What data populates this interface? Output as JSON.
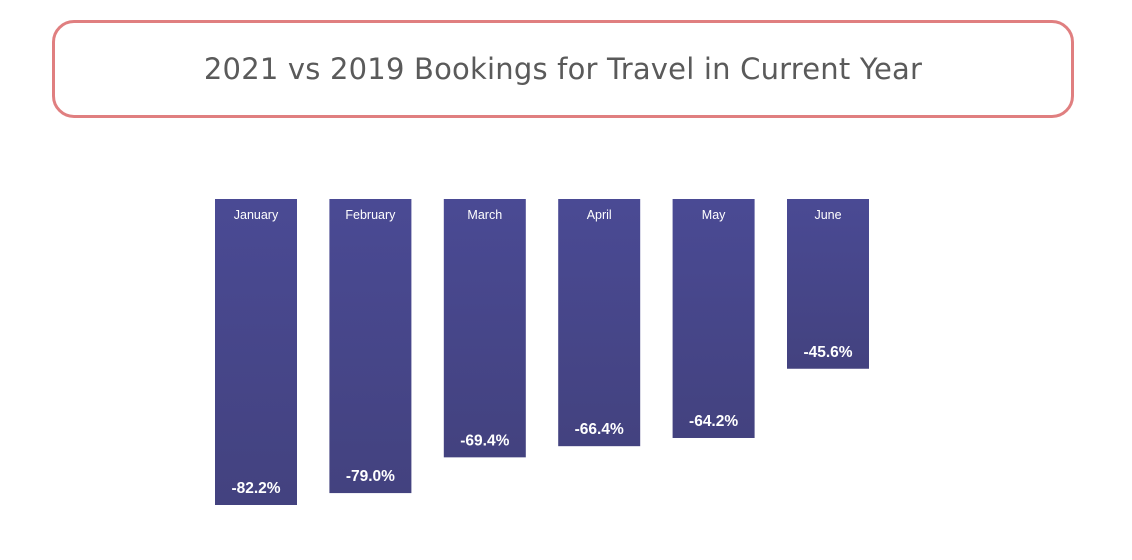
{
  "chart_data": {
    "type": "bar",
    "title": "2021 vs 2019 Bookings for Travel in Current Year",
    "categories": [
      "January",
      "February",
      "March",
      "April",
      "May",
      "June"
    ],
    "values": [
      -82.2,
      -79.0,
      -69.4,
      -66.4,
      -64.2,
      -45.6
    ],
    "value_labels": [
      "-82.2%",
      "-79.0%",
      "-69.4%",
      "-66.4%",
      "-64.2%",
      "-45.6%"
    ],
    "xlabel": "",
    "ylabel": "",
    "ylim": [
      -82.2,
      0
    ],
    "grid": false,
    "legend": "none",
    "category_label_position": "top-inside",
    "value_label_position": "bottom-inside",
    "bar_color": "#4a4a94",
    "bar_color_top": "#4a4a94",
    "bar_color_bottom": "#43427f"
  }
}
